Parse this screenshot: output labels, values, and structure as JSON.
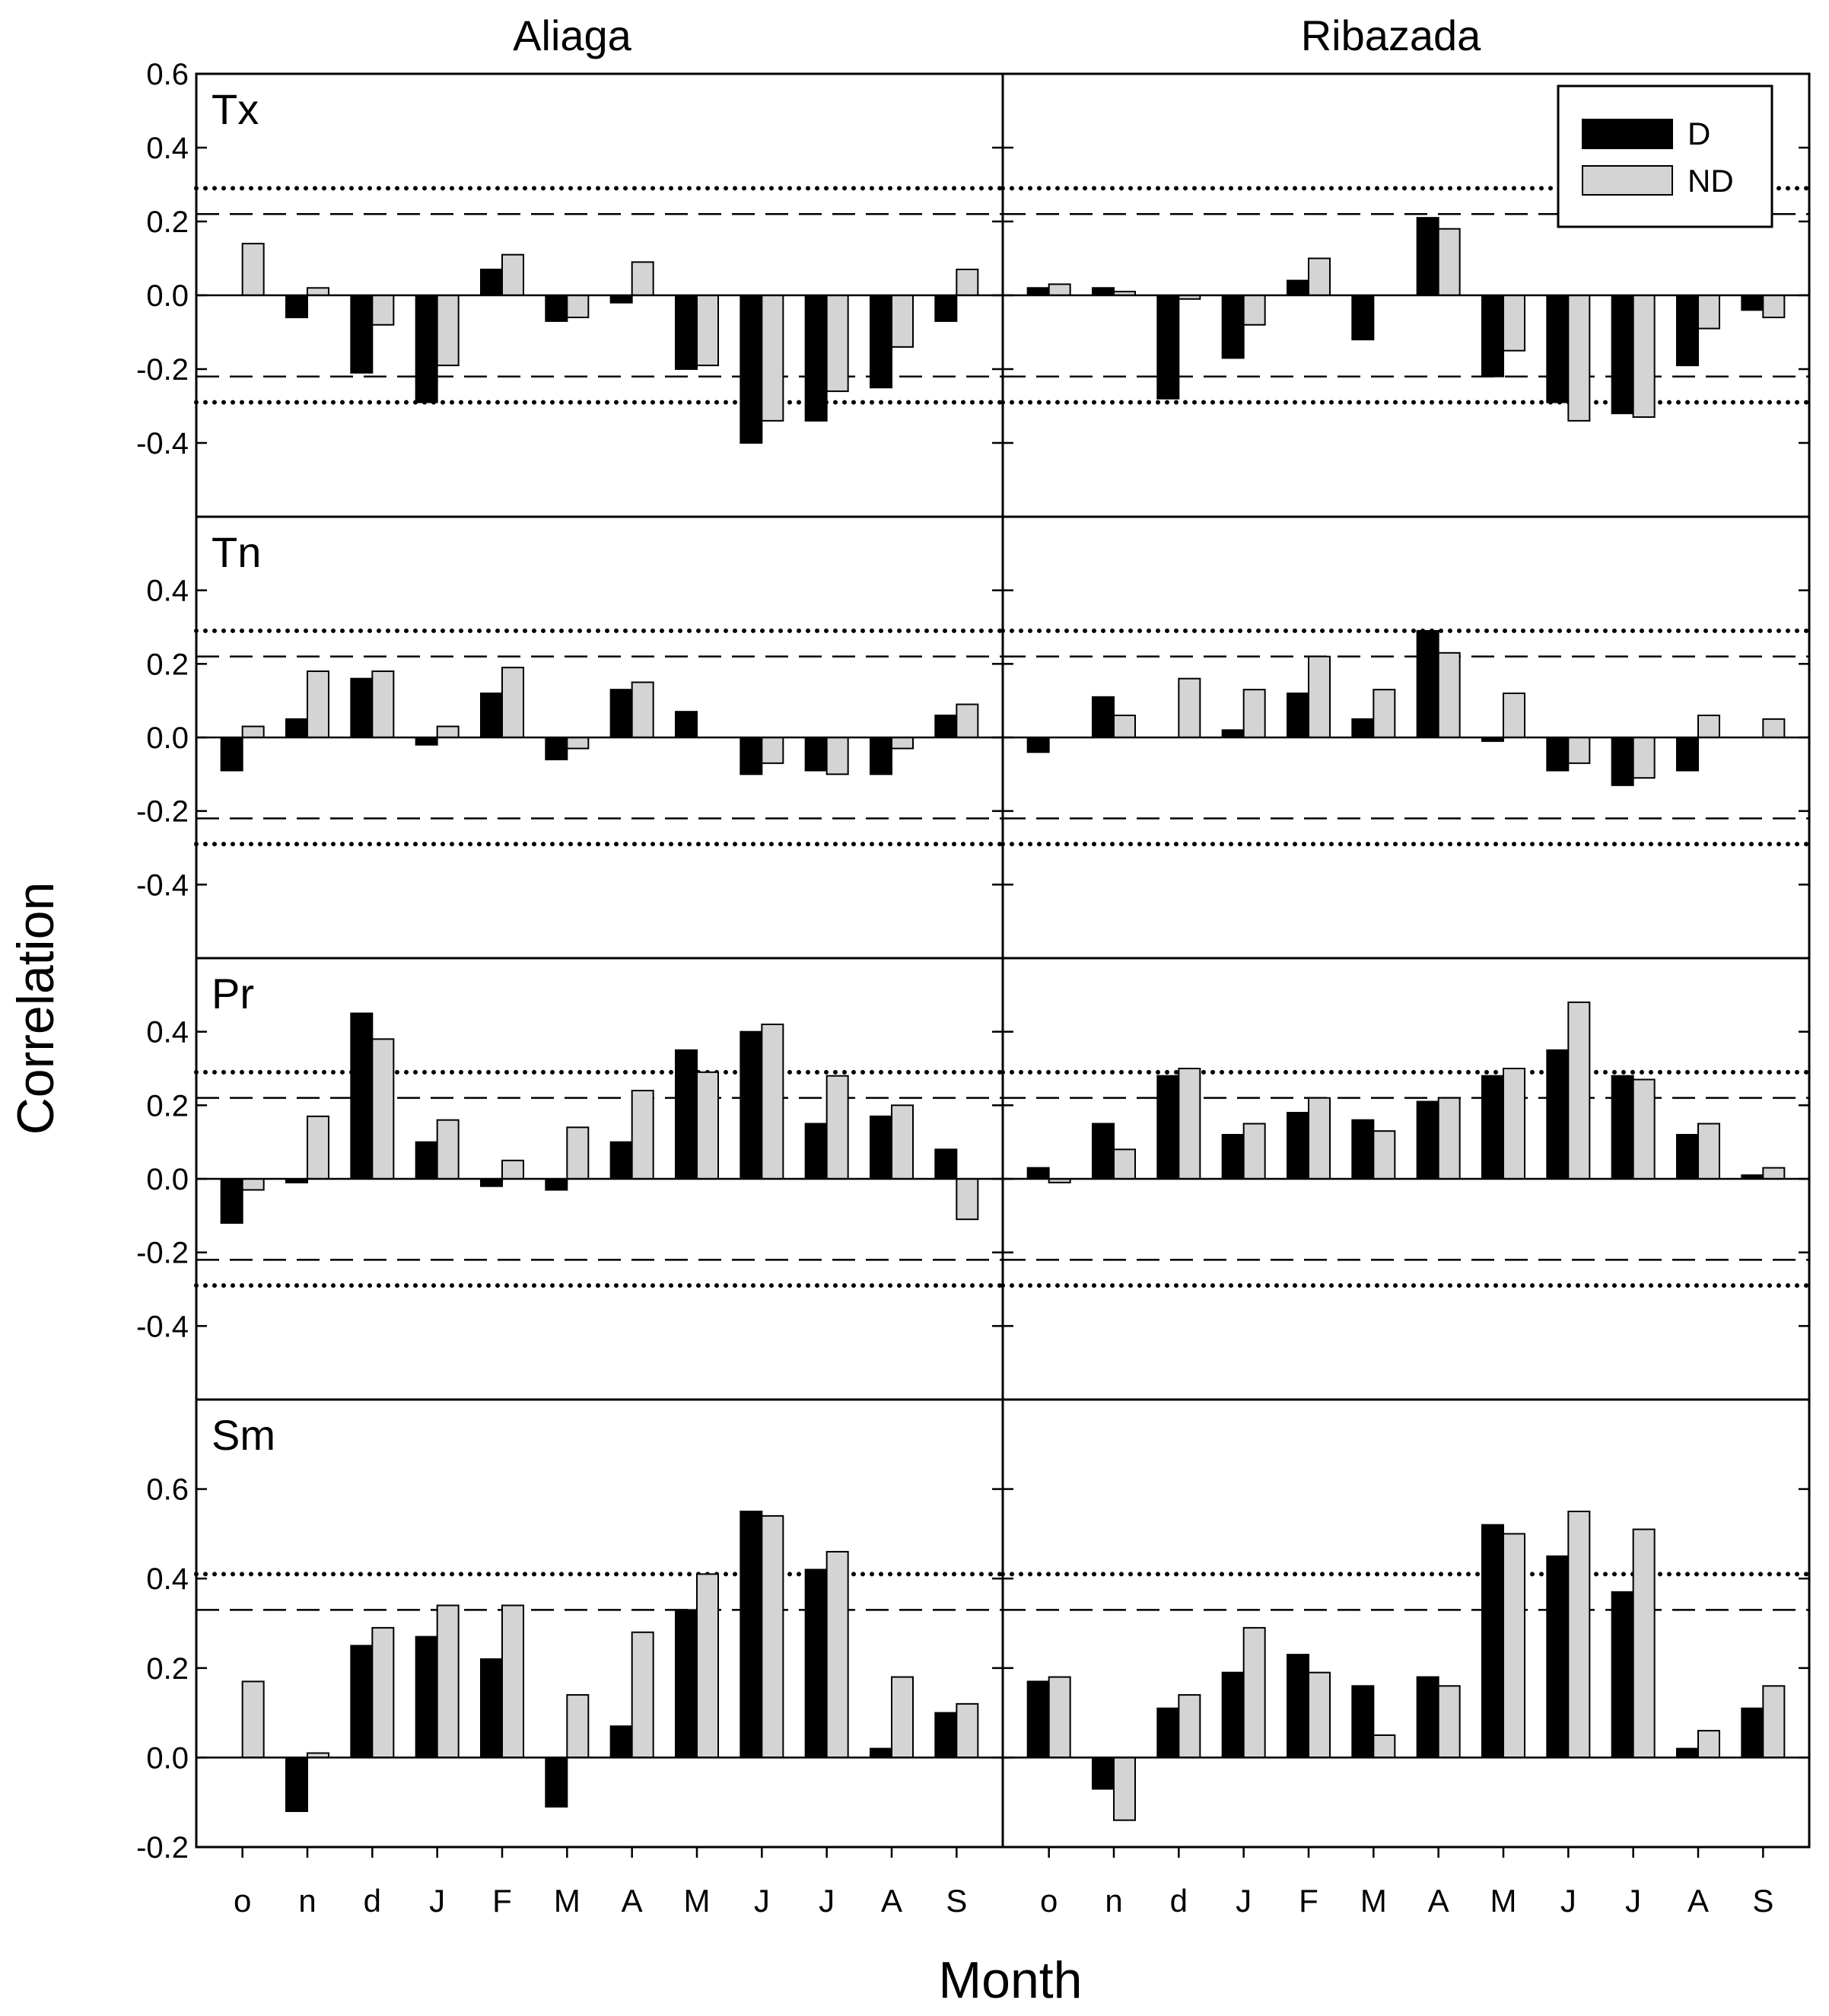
{
  "figure": {
    "ylabel": "Correlation",
    "xlabel": "Month",
    "columns": [
      "Aliaga",
      "Ribazada"
    ],
    "legend": {
      "items": [
        "D",
        "ND"
      ],
      "colors": [
        "#000000",
        "#d4d4d4"
      ],
      "placement": "top-right"
    }
  },
  "chart_data": [
    {
      "type": "bar",
      "site": "Aliaga",
      "panel_label": "Tx",
      "categories": [
        "o",
        "n",
        "d",
        "J",
        "F",
        "M",
        "A",
        "M",
        "J",
        "J",
        "A",
        "S"
      ],
      "series": [
        {
          "name": "D",
          "values": [
            0.0,
            -0.06,
            -0.21,
            -0.29,
            0.07,
            -0.07,
            -0.02,
            -0.2,
            -0.4,
            -0.34,
            -0.25,
            -0.07
          ]
        },
        {
          "name": "ND",
          "values": [
            0.14,
            0.02,
            -0.08,
            -0.19,
            0.11,
            -0.06,
            0.09,
            -0.19,
            -0.34,
            -0.26,
            -0.14,
            0.07
          ]
        }
      ],
      "ylim": [
        -0.6,
        0.6
      ],
      "yticks": [
        "0.6",
        "0.4",
        "0.2",
        "0.0",
        "-0.2",
        "-0.4"
      ],
      "thresholds": {
        "dashed": 0.22,
        "dotted": 0.29
      }
    },
    {
      "type": "bar",
      "site": "Ribazada",
      "panel_label": "",
      "categories": [
        "o",
        "n",
        "d",
        "J",
        "F",
        "M",
        "A",
        "M",
        "J",
        "J",
        "A",
        "S"
      ],
      "series": [
        {
          "name": "D",
          "values": [
            0.02,
            0.02,
            -0.28,
            -0.17,
            0.04,
            -0.12,
            0.21,
            -0.22,
            -0.29,
            -0.32,
            -0.19,
            -0.04
          ]
        },
        {
          "name": "ND",
          "values": [
            0.03,
            0.01,
            -0.01,
            -0.08,
            0.1,
            0.0,
            0.18,
            -0.15,
            -0.34,
            -0.33,
            -0.09,
            -0.06
          ]
        }
      ],
      "ylim": [
        -0.6,
        0.6
      ],
      "thresholds": {
        "dashed": 0.22,
        "dotted": 0.29
      }
    },
    {
      "type": "bar",
      "site": "Aliaga",
      "panel_label": "Tn",
      "categories": [
        "o",
        "n",
        "d",
        "J",
        "F",
        "M",
        "A",
        "M",
        "J",
        "J",
        "A",
        "S"
      ],
      "series": [
        {
          "name": "D",
          "values": [
            -0.09,
            0.05,
            0.16,
            -0.02,
            0.12,
            -0.06,
            0.13,
            0.07,
            -0.1,
            -0.09,
            -0.1,
            0.06
          ]
        },
        {
          "name": "ND",
          "values": [
            0.03,
            0.18,
            0.18,
            0.03,
            0.19,
            -0.03,
            0.15,
            0.0,
            -0.07,
            -0.1,
            -0.03,
            0.09
          ]
        }
      ],
      "ylim": [
        -0.6,
        0.6
      ],
      "yticks": [
        "0.4",
        "0.2",
        "0.0",
        "-0.2",
        "-0.4"
      ],
      "thresholds": {
        "dashed": 0.22,
        "dotted": 0.29
      }
    },
    {
      "type": "bar",
      "site": "Ribazada",
      "panel_label": "",
      "categories": [
        "o",
        "n",
        "d",
        "J",
        "F",
        "M",
        "A",
        "M",
        "J",
        "J",
        "A",
        "S"
      ],
      "series": [
        {
          "name": "D",
          "values": [
            -0.04,
            0.11,
            0.0,
            0.02,
            0.12,
            0.05,
            0.29,
            -0.01,
            -0.09,
            -0.13,
            -0.09,
            0.0
          ]
        },
        {
          "name": "ND",
          "values": [
            0.0,
            0.06,
            0.16,
            0.13,
            0.22,
            0.13,
            0.23,
            0.12,
            -0.07,
            -0.11,
            0.06,
            0.05
          ]
        }
      ],
      "ylim": [
        -0.6,
        0.6
      ],
      "thresholds": {
        "dashed": 0.22,
        "dotted": 0.29
      }
    },
    {
      "type": "bar",
      "site": "Aliaga",
      "panel_label": "Pr",
      "categories": [
        "o",
        "n",
        "d",
        "J",
        "F",
        "M",
        "A",
        "M",
        "J",
        "J",
        "A",
        "S"
      ],
      "series": [
        {
          "name": "D",
          "values": [
            -0.12,
            -0.01,
            0.45,
            0.1,
            -0.02,
            -0.03,
            0.1,
            0.35,
            0.4,
            0.15,
            0.17,
            0.08
          ]
        },
        {
          "name": "ND",
          "values": [
            -0.03,
            0.17,
            0.38,
            0.16,
            0.05,
            0.14,
            0.24,
            0.29,
            0.42,
            0.28,
            0.2,
            -0.11
          ]
        }
      ],
      "ylim": [
        -0.6,
        0.6
      ],
      "yticks": [
        "0.4",
        "0.2",
        "0.0",
        "-0.2",
        "-0.4"
      ],
      "thresholds": {
        "dashed": 0.22,
        "dotted": 0.29
      }
    },
    {
      "type": "bar",
      "site": "Ribazada",
      "panel_label": "",
      "categories": [
        "o",
        "n",
        "d",
        "J",
        "F",
        "M",
        "A",
        "M",
        "J",
        "J",
        "A",
        "S"
      ],
      "series": [
        {
          "name": "D",
          "values": [
            0.03,
            0.15,
            0.28,
            0.12,
            0.18,
            0.16,
            0.21,
            0.28,
            0.35,
            0.28,
            0.12,
            0.01
          ]
        },
        {
          "name": "ND",
          "values": [
            -0.01,
            0.08,
            0.3,
            0.15,
            0.22,
            0.13,
            0.22,
            0.3,
            0.48,
            0.27,
            0.15,
            0.03
          ]
        }
      ],
      "ylim": [
        -0.6,
        0.6
      ],
      "thresholds": {
        "dashed": 0.22,
        "dotted": 0.29
      }
    },
    {
      "type": "bar",
      "site": "Aliaga",
      "panel_label": "Sm",
      "categories": [
        "o",
        "n",
        "d",
        "J",
        "F",
        "M",
        "A",
        "M",
        "J",
        "J",
        "A",
        "S"
      ],
      "series": [
        {
          "name": "D",
          "values": [
            0.0,
            -0.12,
            0.25,
            0.27,
            0.22,
            -0.11,
            0.07,
            0.33,
            0.55,
            0.42,
            0.02,
            0.1
          ]
        },
        {
          "name": "ND",
          "values": [
            0.17,
            0.01,
            0.29,
            0.34,
            0.34,
            0.14,
            0.28,
            0.41,
            0.54,
            0.46,
            0.18,
            0.12
          ]
        }
      ],
      "ylim": [
        -0.2,
        0.8
      ],
      "yticks": [
        "0.6",
        "0.4",
        "0.2",
        "0.0",
        "-0.2"
      ],
      "thresholds": {
        "dashed": 0.33,
        "dotted": 0.41
      }
    },
    {
      "type": "bar",
      "site": "Ribazada",
      "panel_label": "",
      "categories": [
        "o",
        "n",
        "d",
        "J",
        "F",
        "M",
        "A",
        "M",
        "J",
        "J",
        "A",
        "S"
      ],
      "series": [
        {
          "name": "D",
          "values": [
            0.17,
            -0.07,
            0.11,
            0.19,
            0.23,
            0.16,
            0.18,
            0.52,
            0.45,
            0.37,
            0.02,
            0.11
          ]
        },
        {
          "name": "ND",
          "values": [
            0.18,
            -0.14,
            0.14,
            0.29,
            0.19,
            0.05,
            0.16,
            0.5,
            0.55,
            0.51,
            0.06,
            0.16
          ]
        }
      ],
      "ylim": [
        -0.2,
        0.8
      ],
      "thresholds": {
        "dashed": 0.33,
        "dotted": 0.41
      }
    }
  ]
}
